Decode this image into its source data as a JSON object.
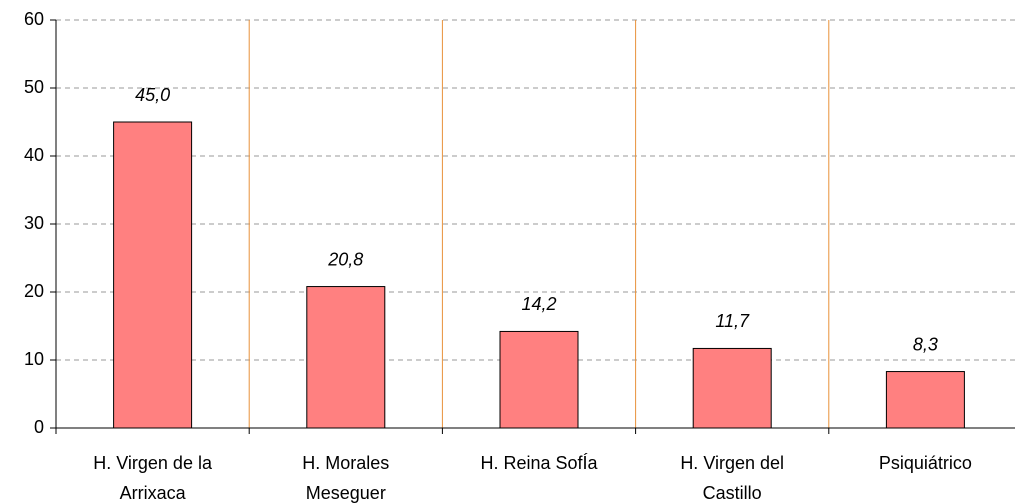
{
  "chart_data": {
    "type": "bar",
    "categories": [
      "H. Virgen de la Arrixaca",
      "H. Morales Meseguer",
      "H. Reina SofÍa",
      "H. Virgen del Castillo",
      "Psiquiátrico"
    ],
    "values": [
      45.0,
      20.8,
      14.2,
      11.7,
      8.3
    ],
    "value_labels": [
      "45,0",
      "20,8",
      "14,2",
      "11,7",
      "8,3"
    ],
    "color": "#ff8080",
    "ylim": [
      0,
      60
    ],
    "yticks": [
      0,
      10,
      20,
      30,
      40,
      50,
      60
    ],
    "grid": true
  }
}
